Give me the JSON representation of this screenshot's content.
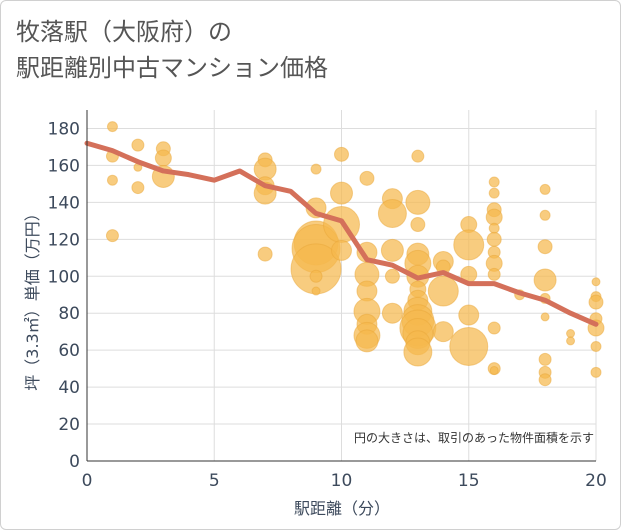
{
  "title": "牧落駅（大阪府）の\n駅距離別中古マンション価格",
  "note": "円の大きさは、取引のあった物件面積を示す",
  "colors": {
    "bubble": "#f5b94d",
    "line": "#d4705a",
    "grid": "#dddddd",
    "axis": "#333333"
  },
  "chart_data": {
    "type": "scatter",
    "xlabel": "駅距離（分）",
    "ylabel": "坪（3.3㎡）単価（万円）",
    "xlim": [
      0,
      20
    ],
    "ylim": [
      0,
      190
    ],
    "xticks": [
      "0",
      "5",
      "10",
      "15",
      "20"
    ],
    "yticks": [
      "0",
      "20",
      "40",
      "60",
      "80",
      "100",
      "120",
      "140",
      "160",
      "180"
    ],
    "trend_line": {
      "x": [
        0,
        1,
        2,
        3,
        4,
        5,
        6,
        7,
        8,
        9,
        10,
        11,
        12,
        13,
        14,
        15,
        16,
        17,
        18,
        19,
        20
      ],
      "y": [
        172,
        168,
        162,
        157,
        155,
        152,
        157,
        149,
        146,
        134,
        130,
        109,
        106,
        99,
        102,
        96,
        96,
        91,
        87,
        80,
        74
      ]
    },
    "bubbles": [
      {
        "x": 1,
        "y": 181,
        "s": 5
      },
      {
        "x": 1,
        "y": 165,
        "s": 6
      },
      {
        "x": 1,
        "y": 152,
        "s": 5
      },
      {
        "x": 1,
        "y": 122,
        "s": 6
      },
      {
        "x": 2,
        "y": 171,
        "s": 6
      },
      {
        "x": 2,
        "y": 159,
        "s": 4
      },
      {
        "x": 2,
        "y": 148,
        "s": 6
      },
      {
        "x": 3,
        "y": 169,
        "s": 7
      },
      {
        "x": 3,
        "y": 164,
        "s": 8
      },
      {
        "x": 3,
        "y": 154,
        "s": 11
      },
      {
        "x": 7,
        "y": 163,
        "s": 7
      },
      {
        "x": 7,
        "y": 158,
        "s": 11
      },
      {
        "x": 7,
        "y": 149,
        "s": 9
      },
      {
        "x": 7,
        "y": 145,
        "s": 11
      },
      {
        "x": 7,
        "y": 112,
        "s": 7
      },
      {
        "x": 9,
        "y": 158,
        "s": 5
      },
      {
        "x": 9,
        "y": 137,
        "s": 10
      },
      {
        "x": 9,
        "y": 118,
        "s": 22
      },
      {
        "x": 9,
        "y": 115,
        "s": 24
      },
      {
        "x": 9,
        "y": 104,
        "s": 25
      },
      {
        "x": 9,
        "y": 100,
        "s": 6
      },
      {
        "x": 9,
        "y": 92,
        "s": 4
      },
      {
        "x": 10,
        "y": 166,
        "s": 7
      },
      {
        "x": 10,
        "y": 145,
        "s": 11
      },
      {
        "x": 10,
        "y": 128,
        "s": 18
      },
      {
        "x": 10,
        "y": 114,
        "s": 10
      },
      {
        "x": 11,
        "y": 153,
        "s": 7
      },
      {
        "x": 11,
        "y": 113,
        "s": 10
      },
      {
        "x": 11,
        "y": 101,
        "s": 12
      },
      {
        "x": 11,
        "y": 92,
        "s": 10
      },
      {
        "x": 11,
        "y": 81,
        "s": 13
      },
      {
        "x": 11,
        "y": 74,
        "s": 10
      },
      {
        "x": 11,
        "y": 68,
        "s": 13
      },
      {
        "x": 11,
        "y": 65,
        "s": 11
      },
      {
        "x": 12,
        "y": 142,
        "s": 10
      },
      {
        "x": 12,
        "y": 134,
        "s": 14
      },
      {
        "x": 12,
        "y": 114,
        "s": 11
      },
      {
        "x": 12,
        "y": 100,
        "s": 7
      },
      {
        "x": 12,
        "y": 80,
        "s": 10
      },
      {
        "x": 13,
        "y": 165,
        "s": 6
      },
      {
        "x": 13,
        "y": 140,
        "s": 12
      },
      {
        "x": 13,
        "y": 128,
        "s": 7
      },
      {
        "x": 13,
        "y": 112,
        "s": 11
      },
      {
        "x": 13,
        "y": 107,
        "s": 13
      },
      {
        "x": 13,
        "y": 100,
        "s": 11
      },
      {
        "x": 13,
        "y": 93,
        "s": 8
      },
      {
        "x": 13,
        "y": 87,
        "s": 10
      },
      {
        "x": 13,
        "y": 81,
        "s": 14
      },
      {
        "x": 13,
        "y": 76,
        "s": 16
      },
      {
        "x": 13,
        "y": 72,
        "s": 18
      },
      {
        "x": 13,
        "y": 69,
        "s": 15
      },
      {
        "x": 13,
        "y": 64,
        "s": 12
      },
      {
        "x": 13,
        "y": 59,
        "s": 14
      },
      {
        "x": 14,
        "y": 108,
        "s": 10
      },
      {
        "x": 14,
        "y": 105,
        "s": 7
      },
      {
        "x": 14,
        "y": 92,
        "s": 15
      },
      {
        "x": 14,
        "y": 70,
        "s": 10
      },
      {
        "x": 15,
        "y": 128,
        "s": 8
      },
      {
        "x": 15,
        "y": 117,
        "s": 15
      },
      {
        "x": 15,
        "y": 101,
        "s": 8
      },
      {
        "x": 15,
        "y": 79,
        "s": 10
      },
      {
        "x": 15,
        "y": 62,
        "s": 19
      },
      {
        "x": 16,
        "y": 151,
        "s": 5
      },
      {
        "x": 16,
        "y": 145,
        "s": 5
      },
      {
        "x": 16,
        "y": 136,
        "s": 7
      },
      {
        "x": 16,
        "y": 132,
        "s": 8
      },
      {
        "x": 16,
        "y": 126,
        "s": 5
      },
      {
        "x": 16,
        "y": 120,
        "s": 7
      },
      {
        "x": 16,
        "y": 113,
        "s": 6
      },
      {
        "x": 16,
        "y": 107,
        "s": 8
      },
      {
        "x": 16,
        "y": 101,
        "s": 6
      },
      {
        "x": 16,
        "y": 72,
        "s": 6
      },
      {
        "x": 16,
        "y": 50,
        "s": 6
      },
      {
        "x": 16,
        "y": 49,
        "s": 4
      },
      {
        "x": 17,
        "y": 90,
        "s": 5
      },
      {
        "x": 18,
        "y": 147,
        "s": 5
      },
      {
        "x": 18,
        "y": 133,
        "s": 5
      },
      {
        "x": 18,
        "y": 116,
        "s": 7
      },
      {
        "x": 18,
        "y": 98,
        "s": 11
      },
      {
        "x": 18,
        "y": 88,
        "s": 5
      },
      {
        "x": 18,
        "y": 78,
        "s": 4
      },
      {
        "x": 18,
        "y": 55,
        "s": 6
      },
      {
        "x": 18,
        "y": 48,
        "s": 6
      },
      {
        "x": 18,
        "y": 44,
        "s": 6
      },
      {
        "x": 19,
        "y": 69,
        "s": 4
      },
      {
        "x": 19,
        "y": 65,
        "s": 4
      },
      {
        "x": 20,
        "y": 97,
        "s": 4
      },
      {
        "x": 20,
        "y": 89,
        "s": 5
      },
      {
        "x": 20,
        "y": 86,
        "s": 7
      },
      {
        "x": 20,
        "y": 77,
        "s": 6
      },
      {
        "x": 20,
        "y": 72,
        "s": 8
      },
      {
        "x": 20,
        "y": 62,
        "s": 5
      },
      {
        "x": 20,
        "y": 48,
        "s": 5
      }
    ]
  }
}
